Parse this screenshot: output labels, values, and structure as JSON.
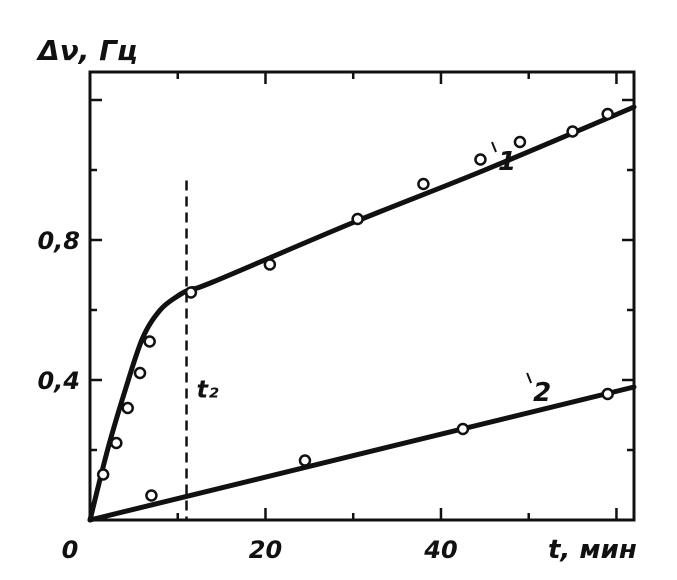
{
  "chart_data": {
    "type": "line",
    "title": "",
    "ylabel": "Δν, Гц",
    "xlabel": "t, мин",
    "xlim": [
      0,
      62
    ],
    "ylim": [
      0,
      1.28
    ],
    "x_ticks": [
      0,
      20,
      40
    ],
    "x_tick_labels": [
      "0",
      "20",
      "40"
    ],
    "y_ticks": [
      0.4,
      0.8
    ],
    "y_tick_labels": [
      "0,4",
      "0,8"
    ],
    "grid": false,
    "legend": "none",
    "series": [
      {
        "name": "1",
        "line": [
          [
            0,
            0
          ],
          [
            2,
            0.2
          ],
          [
            4,
            0.37
          ],
          [
            6,
            0.52
          ],
          [
            8,
            0.6
          ],
          [
            10,
            0.64
          ],
          [
            11.5,
            0.66
          ],
          [
            14,
            0.68
          ],
          [
            30,
            0.85
          ],
          [
            45,
            1.0
          ],
          [
            62,
            1.18
          ]
        ],
        "points": [
          [
            1.5,
            0.13
          ],
          [
            3,
            0.22
          ],
          [
            4.3,
            0.32
          ],
          [
            5.7,
            0.42
          ],
          [
            6.8,
            0.51
          ],
          [
            11.5,
            0.65
          ],
          [
            20.5,
            0.73
          ],
          [
            30.5,
            0.86
          ],
          [
            38,
            0.96
          ],
          [
            44.5,
            1.03
          ],
          [
            49,
            1.08
          ],
          [
            55,
            1.11
          ],
          [
            59,
            1.16
          ]
        ]
      },
      {
        "name": "2",
        "line": [
          [
            0,
            0
          ],
          [
            62,
            0.38
          ]
        ],
        "points": [
          [
            7,
            0.07
          ],
          [
            24.5,
            0.17
          ],
          [
            42.5,
            0.26
          ],
          [
            59,
            0.36
          ]
        ]
      }
    ],
    "annotations": [
      {
        "type": "vline",
        "x": 11,
        "label": "t₂"
      }
    ],
    "series_label_points": [
      {
        "text": "1",
        "x": 46.5,
        "y": 1.0
      },
      {
        "text": "2",
        "x": 50.5,
        "y": 0.34
      }
    ],
    "colors": {
      "ink": "#111111",
      "background": "#ffffff"
    }
  }
}
